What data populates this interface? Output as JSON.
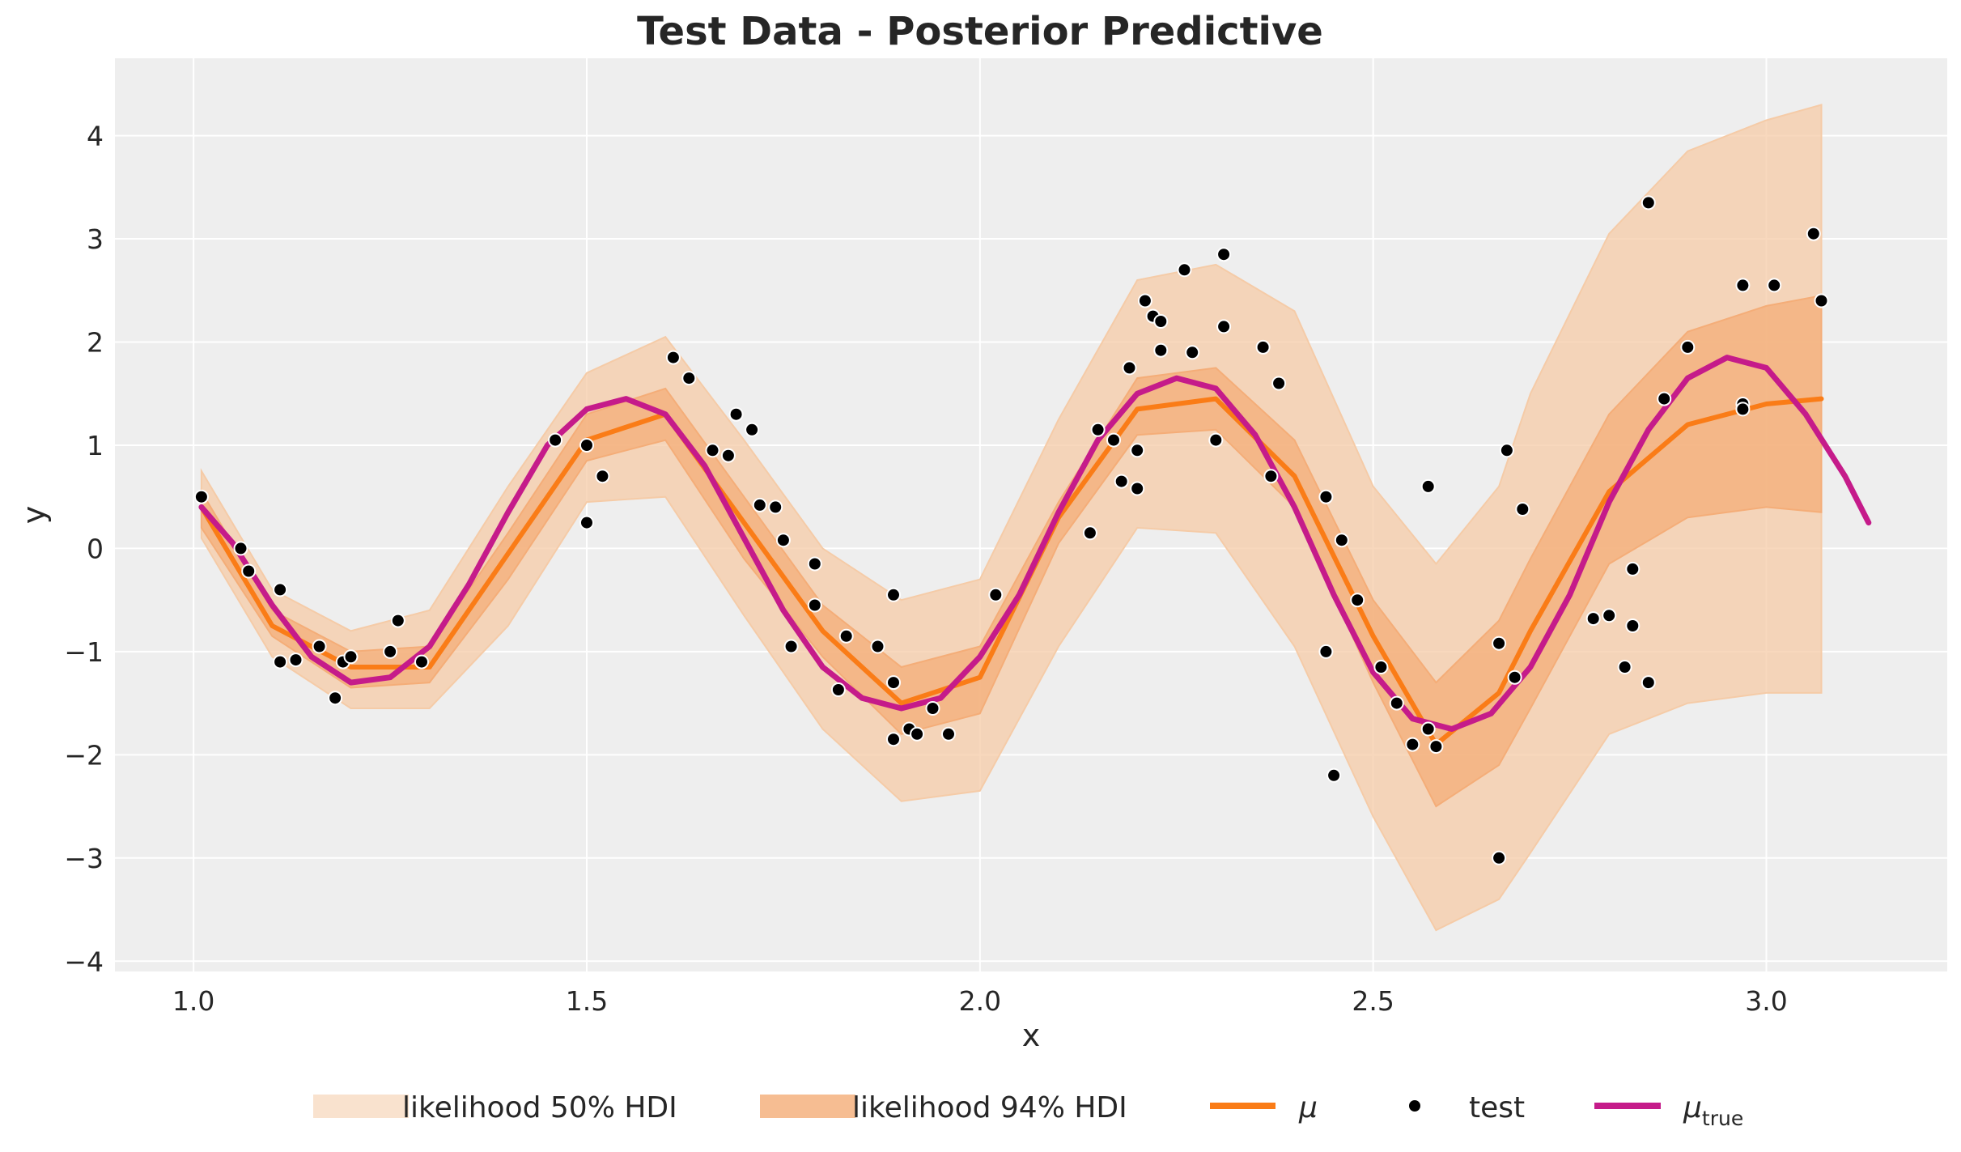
{
  "chart_data": {
    "type": "line",
    "title": "Test Data - Posterior Predictive",
    "xlabel": "x",
    "ylabel": "y",
    "xlim": [
      0.9,
      3.23
    ],
    "ylim": [
      -4.1,
      4.75
    ],
    "xticks": [
      1.0,
      1.5,
      2.0,
      2.5,
      3.0
    ],
    "xtick_labels": [
      "1.0",
      "1.5",
      "2.0",
      "2.5",
      "3.0"
    ],
    "yticks": [
      -4,
      -3,
      -2,
      -1,
      0,
      1,
      2,
      3,
      4
    ],
    "ytick_labels": [
      "−4",
      "−3",
      "−2",
      "−1",
      "0",
      "1",
      "2",
      "3",
      "4"
    ],
    "grid": true,
    "legend_position": "bottom",
    "legend": {
      "hdi50": "likelihood 50% HDI",
      "hdi94": "likelihood 94% HDI",
      "mu": "μ",
      "test": "test",
      "mu_true": "μ",
      "mu_true_sub": "true"
    },
    "colors": {
      "background": "#eeeeee",
      "grid": "#ffffff",
      "hdi_outer": "#f5cba7",
      "hdi_inner": "#f4ad78",
      "mu": "#fa7c17",
      "mu_true": "#c51b8a",
      "test": "#000000"
    },
    "bands": {
      "x": [
        1.01,
        1.1,
        1.2,
        1.3,
        1.4,
        1.5,
        1.6,
        1.7,
        1.8,
        1.9,
        2.0,
        2.1,
        2.2,
        2.3,
        2.4,
        2.5,
        2.58,
        2.66,
        2.7,
        2.8,
        2.9,
        3.0,
        3.07
      ],
      "inner_upper": [
        0.55,
        -0.6,
        -1.0,
        -0.95,
        0.15,
        1.3,
        1.55,
        0.5,
        -0.55,
        -1.15,
        -0.95,
        0.45,
        1.65,
        1.75,
        1.05,
        -0.5,
        -1.3,
        -0.7,
        -0.1,
        1.3,
        2.1,
        2.35,
        2.45
      ],
      "inner_lower": [
        0.2,
        -0.85,
        -1.35,
        -1.3,
        -0.3,
        0.85,
        1.05,
        -0.1,
        -1.05,
        -1.8,
        -1.6,
        0.05,
        1.1,
        1.15,
        0.4,
        -1.3,
        -2.5,
        -2.1,
        -1.55,
        -0.15,
        0.3,
        0.4,
        0.35
      ],
      "outer_upper": [
        0.75,
        -0.4,
        -0.8,
        -0.6,
        0.6,
        1.7,
        2.05,
        1.05,
        0.0,
        -0.5,
        -0.3,
        1.25,
        2.6,
        2.75,
        2.3,
        0.6,
        -0.15,
        0.6,
        1.5,
        3.05,
        3.85,
        4.15,
        4.3
      ],
      "outer_lower": [
        0.1,
        -1.05,
        -1.55,
        -1.55,
        -0.75,
        0.45,
        0.5,
        -0.65,
        -1.75,
        -2.45,
        -2.35,
        -0.95,
        0.2,
        0.15,
        -0.95,
        -2.6,
        -3.7,
        -3.4,
        -2.95,
        -1.8,
        -1.5,
        -1.4,
        -1.4
      ]
    },
    "series": [
      {
        "name": "μ",
        "x": [
          1.01,
          1.1,
          1.2,
          1.3,
          1.4,
          1.5,
          1.6,
          1.7,
          1.8,
          1.9,
          2.0,
          2.1,
          2.2,
          2.3,
          2.4,
          2.5,
          2.58,
          2.66,
          2.7,
          2.8,
          2.9,
          3.0,
          3.07
        ],
        "y": [
          0.4,
          -0.75,
          -1.15,
          -1.15,
          -0.05,
          1.05,
          1.3,
          0.25,
          -0.8,
          -1.5,
          -1.25,
          0.3,
          1.35,
          1.45,
          0.7,
          -0.85,
          -1.9,
          -1.4,
          -0.8,
          0.55,
          1.2,
          1.4,
          1.45
        ]
      },
      {
        "name": "μ_true",
        "x": [
          1.01,
          1.05,
          1.1,
          1.15,
          1.2,
          1.25,
          1.3,
          1.35,
          1.4,
          1.45,
          1.5,
          1.55,
          1.6,
          1.65,
          1.7,
          1.75,
          1.8,
          1.85,
          1.9,
          1.95,
          2.0,
          2.05,
          2.1,
          2.15,
          2.2,
          2.25,
          2.3,
          2.35,
          2.4,
          2.45,
          2.5,
          2.55,
          2.6,
          2.65,
          2.7,
          2.75,
          2.8,
          2.85,
          2.9,
          2.95,
          3.0,
          3.05,
          3.1,
          3.13
        ],
        "y": [
          0.4,
          0.05,
          -0.55,
          -1.05,
          -1.3,
          -1.25,
          -0.95,
          -0.35,
          0.35,
          1.0,
          1.35,
          1.45,
          1.3,
          0.8,
          0.1,
          -0.6,
          -1.15,
          -1.45,
          -1.55,
          -1.45,
          -1.05,
          -0.45,
          0.35,
          1.05,
          1.5,
          1.65,
          1.55,
          1.1,
          0.4,
          -0.45,
          -1.2,
          -1.65,
          -1.75,
          -1.6,
          -1.15,
          -0.45,
          0.45,
          1.15,
          1.65,
          1.85,
          1.75,
          1.3,
          0.7,
          0.25
        ]
      }
    ],
    "scatter": {
      "name": "test",
      "points": [
        [
          1.01,
          0.5
        ],
        [
          1.06,
          0.0
        ],
        [
          1.07,
          -0.22
        ],
        [
          1.11,
          -0.4
        ],
        [
          1.11,
          -1.1
        ],
        [
          1.13,
          -1.08
        ],
        [
          1.16,
          -0.95
        ],
        [
          1.18,
          -1.45
        ],
        [
          1.19,
          -1.1
        ],
        [
          1.2,
          -1.05
        ],
        [
          1.25,
          -1.0
        ],
        [
          1.26,
          -0.7
        ],
        [
          1.29,
          -1.1
        ],
        [
          1.46,
          1.05
        ],
        [
          1.5,
          0.25
        ],
        [
          1.5,
          1.0
        ],
        [
          1.52,
          0.7
        ],
        [
          1.61,
          1.85
        ],
        [
          1.63,
          1.65
        ],
        [
          1.66,
          0.95
        ],
        [
          1.68,
          0.9
        ],
        [
          1.69,
          1.3
        ],
        [
          1.71,
          1.15
        ],
        [
          1.72,
          0.42
        ],
        [
          1.74,
          0.4
        ],
        [
          1.75,
          0.08
        ],
        [
          1.76,
          -0.95
        ],
        [
          1.79,
          -0.55
        ],
        [
          1.79,
          -0.15
        ],
        [
          1.82,
          -1.37
        ],
        [
          1.83,
          -0.85
        ],
        [
          1.87,
          -0.95
        ],
        [
          1.89,
          -0.45
        ],
        [
          1.89,
          -1.85
        ],
        [
          1.89,
          -1.3
        ],
        [
          1.91,
          -1.75
        ],
        [
          1.92,
          -1.8
        ],
        [
          1.94,
          -1.55
        ],
        [
          1.96,
          -1.8
        ],
        [
          2.02,
          -0.45
        ],
        [
          2.14,
          0.15
        ],
        [
          2.15,
          1.15
        ],
        [
          2.17,
          1.05
        ],
        [
          2.18,
          0.65
        ],
        [
          2.19,
          1.75
        ],
        [
          2.2,
          0.95
        ],
        [
          2.2,
          0.58
        ],
        [
          2.21,
          2.4
        ],
        [
          2.22,
          2.25
        ],
        [
          2.23,
          2.2
        ],
        [
          2.23,
          1.92
        ],
        [
          2.26,
          2.7
        ],
        [
          2.27,
          1.9
        ],
        [
          2.3,
          1.05
        ],
        [
          2.31,
          2.85
        ],
        [
          2.31,
          2.15
        ],
        [
          2.36,
          1.95
        ],
        [
          2.37,
          0.7
        ],
        [
          2.38,
          1.6
        ],
        [
          2.44,
          0.5
        ],
        [
          2.44,
          -1.0
        ],
        [
          2.45,
          -2.2
        ],
        [
          2.46,
          0.08
        ],
        [
          2.48,
          -0.5
        ],
        [
          2.51,
          -1.15
        ],
        [
          2.53,
          -1.5
        ],
        [
          2.55,
          -1.9
        ],
        [
          2.57,
          -1.75
        ],
        [
          2.57,
          0.6
        ],
        [
          2.58,
          -1.92
        ],
        [
          2.66,
          -0.92
        ],
        [
          2.66,
          -3.0
        ],
        [
          2.67,
          0.95
        ],
        [
          2.68,
          -1.25
        ],
        [
          2.69,
          0.38
        ],
        [
          2.78,
          -0.68
        ],
        [
          2.8,
          -0.65
        ],
        [
          2.82,
          -1.15
        ],
        [
          2.83,
          -0.2
        ],
        [
          2.83,
          -0.75
        ],
        [
          2.85,
          3.35
        ],
        [
          2.85,
          -1.3
        ],
        [
          2.87,
          1.45
        ],
        [
          2.9,
          1.95
        ],
        [
          2.97,
          2.55
        ],
        [
          2.97,
          1.4
        ],
        [
          2.97,
          1.35
        ],
        [
          3.01,
          2.55
        ],
        [
          3.06,
          3.05
        ],
        [
          3.07,
          2.4
        ]
      ]
    }
  }
}
